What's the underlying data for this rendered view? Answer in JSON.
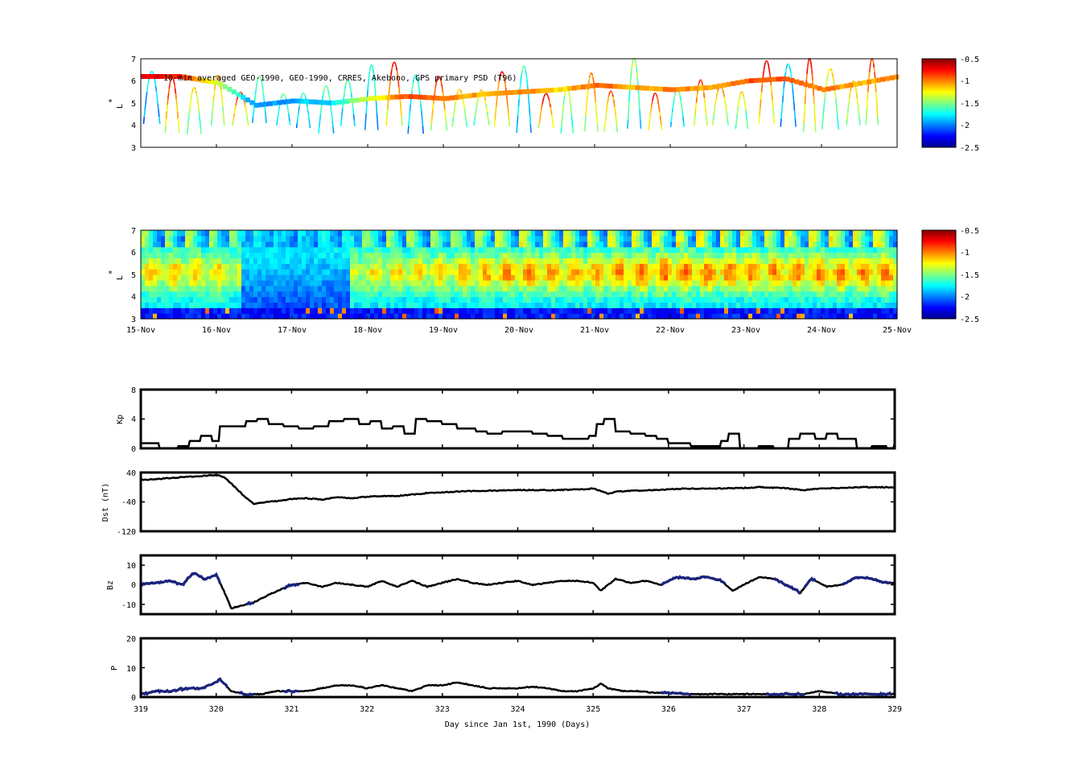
{
  "panels": {
    "psd_obs": {
      "annotation": "10-min averaged GEO-1990, GEO-1990, CRRES, Akebono, GPS  primary PSD (T96)",
      "ylabel_star": "*",
      "ylabel": "L",
      "yticks": [
        "3",
        "4",
        "5",
        "6",
        "7"
      ],
      "colorbar_ticks": [
        "-0.5",
        "-1",
        "-1.5",
        "-2",
        "-2.5"
      ]
    },
    "psd_model": {
      "ylabel_star": "*",
      "ylabel": "L",
      "yticks": [
        "3",
        "4",
        "5",
        "6",
        "7"
      ],
      "xticks": [
        "15-Nov",
        "16-Nov",
        "17-Nov",
        "18-Nov",
        "19-Nov",
        "20-Nov",
        "21-Nov",
        "22-Nov",
        "23-Nov",
        "24-Nov",
        "25-Nov"
      ],
      "colorbar_ticks": [
        "-0.5",
        "-1",
        "-1.5",
        "-2",
        "-2.5"
      ]
    },
    "kp": {
      "ylabel": "Kp",
      "yticks": [
        "0",
        "4",
        "8"
      ]
    },
    "dst": {
      "ylabel": "Dst (nT)",
      "yticks": [
        "-120",
        "-40",
        "40"
      ]
    },
    "bz": {
      "ylabel": "Bz",
      "yticks": [
        "-10",
        "0",
        "10"
      ]
    },
    "p": {
      "ylabel": "P",
      "yticks": [
        "0",
        "10",
        "20"
      ],
      "xticks": [
        "319",
        "320",
        "321",
        "322",
        "323",
        "324",
        "325",
        "326",
        "327",
        "328",
        "329"
      ],
      "xlabel": "Day since Jan 1st, 1990 (Days)"
    }
  },
  "colors": {
    "colormap": [
      "#00008f",
      "#0000ff",
      "#0080ff",
      "#00ffff",
      "#80ff80",
      "#ffff00",
      "#ff8000",
      "#ff0000",
      "#800000"
    ],
    "highlight_trace": "#1a237e"
  },
  "chart_data": [
    {
      "type": "heatmap",
      "name": "observed PSD",
      "title": "10-min averaged GEO-1990, GEO-1990, CRRES, Akebono, GPS  primary PSD (T96)",
      "ylabel": "L*",
      "ylim": [
        3,
        7
      ],
      "clim": [
        -2.5,
        -0.5
      ],
      "x_range": [
        "15-Nov",
        "25-Nov"
      ],
      "geo_track": {
        "day": [
          0,
          0.5,
          1,
          1.5,
          2,
          2.5,
          3,
          3.5,
          4,
          4.5,
          5,
          5.5,
          6,
          6.5,
          7,
          7.5,
          8,
          8.5,
          9,
          9.5,
          10
        ],
        "L": [
          6.2,
          6.2,
          5.9,
          4.9,
          5.1,
          5.0,
          5.2,
          5.3,
          5.2,
          5.4,
          5.5,
          5.6,
          5.8,
          5.7,
          5.6,
          5.7,
          6.0,
          6.1,
          5.6,
          5.9,
          6.2
        ],
        "logPSD": [
          -0.7,
          -0.8,
          -1.4,
          -2.0,
          -1.9,
          -1.8,
          -1.3,
          -0.9,
          -1.0,
          -1.1,
          -1.0,
          -1.2,
          -0.9,
          -1.1,
          -1.0,
          -1.1,
          -0.9,
          -0.9,
          -1.0,
          -1.1,
          -1.0
        ]
      }
    },
    {
      "type": "heatmap",
      "name": "assimilated PSD",
      "ylabel": "L*",
      "ylim": [
        3,
        7
      ],
      "clim": [
        -2.5,
        -0.5
      ],
      "x_categories": [
        "15-Nov",
        "16-Nov",
        "17-Nov",
        "18-Nov",
        "19-Nov",
        "20-Nov",
        "21-Nov",
        "22-Nov",
        "23-Nov",
        "24-Nov",
        "25-Nov"
      ],
      "activity_by_day": [
        0.65,
        0.6,
        0.15,
        0.55,
        0.6,
        0.75,
        0.7,
        0.8,
        0.75,
        0.75,
        0.8
      ]
    },
    {
      "type": "line",
      "ylabel": "Kp",
      "ylim": [
        0,
        8
      ],
      "x": [
        319,
        319.1,
        319.25,
        319.4,
        319.5,
        319.65,
        319.8,
        319.95,
        320.05,
        320.2,
        320.4,
        320.55,
        320.7,
        320.9,
        321.1,
        321.3,
        321.5,
        321.7,
        321.9,
        322.05,
        322.2,
        322.35,
        322.5,
        322.65,
        322.8,
        323.0,
        323.2,
        323.45,
        323.6,
        323.8,
        324.0,
        324.2,
        324.4,
        324.6,
        324.8,
        324.95,
        325.05,
        325.15,
        325.3,
        325.5,
        325.7,
        325.85,
        326.0,
        326.3,
        326.5,
        326.7,
        326.8,
        326.95,
        327.2,
        327.4,
        327.6,
        327.75,
        327.95,
        328.1,
        328.25,
        328.5,
        328.7,
        328.9,
        329.0
      ],
      "y": [
        0.7,
        0.7,
        0,
        0,
        0.3,
        1,
        1.7,
        1,
        3,
        3,
        3.7,
        4,
        3.3,
        3,
        2.7,
        3,
        3.7,
        4,
        3.3,
        3.7,
        2.7,
        3,
        2,
        4,
        3.7,
        3.3,
        2.7,
        2.3,
        2,
        2.3,
        2.3,
        2,
        1.7,
        1.3,
        1.3,
        1.7,
        3.3,
        4,
        2.3,
        2,
        1.7,
        1.3,
        0.7,
        0.3,
        0.3,
        1,
        2,
        0,
        0.3,
        0,
        1.3,
        2,
        1.3,
        2,
        1.3,
        0,
        0.3,
        0,
        0.7
      ]
    },
    {
      "type": "line",
      "ylabel": "Dst (nT)",
      "ylim": [
        -120,
        40
      ],
      "x": [
        319,
        319.2,
        319.4,
        319.6,
        319.8,
        320.0,
        320.1,
        320.2,
        320.3,
        320.4,
        320.5,
        320.6,
        320.8,
        321.0,
        321.2,
        321.4,
        321.6,
        321.8,
        322.0,
        322.2,
        322.4,
        322.6,
        322.8,
        323.0,
        323.2,
        323.5,
        323.8,
        324.0,
        324.2,
        324.5,
        324.8,
        325.0,
        325.1,
        325.2,
        325.3,
        325.5,
        325.8,
        326.0,
        326.2,
        326.5,
        326.8,
        327.0,
        327.2,
        327.5,
        327.8,
        328.0,
        328.3,
        328.6,
        328.9,
        329.0
      ],
      "y": [
        20,
        22,
        25,
        28,
        30,
        34,
        28,
        10,
        -10,
        -30,
        -45,
        -42,
        -38,
        -32,
        -30,
        -34,
        -28,
        -30,
        -26,
        -24,
        -24,
        -20,
        -16,
        -14,
        -12,
        -10,
        -9,
        -8,
        -8,
        -8,
        -6,
        -4,
        -10,
        -18,
        -12,
        -10,
        -8,
        -6,
        -4,
        -4,
        -3,
        -2,
        0,
        -2,
        -8,
        -4,
        -2,
        0,
        0,
        0
      ]
    },
    {
      "type": "line",
      "ylabel": "Bz",
      "ylim": [
        -15,
        15
      ],
      "x": [
        319,
        319.2,
        319.4,
        319.55,
        319.7,
        319.85,
        320.0,
        320.1,
        320.2,
        320.3,
        320.5,
        320.7,
        321.0,
        321.2,
        321.4,
        321.6,
        321.8,
        322.0,
        322.2,
        322.4,
        322.6,
        322.8,
        323.0,
        323.2,
        323.4,
        323.6,
        323.8,
        324.0,
        324.2,
        324.4,
        324.6,
        324.8,
        325.0,
        325.1,
        325.2,
        325.3,
        325.5,
        325.7,
        325.9,
        326.1,
        326.3,
        326.5,
        326.7,
        326.85,
        327.0,
        327.2,
        327.4,
        327.6,
        327.75,
        327.9,
        328.1,
        328.3,
        328.5,
        328.7,
        328.9,
        329.0
      ],
      "y": [
        0,
        1,
        2,
        0,
        6,
        3,
        5,
        -3,
        -12,
        -11,
        -9,
        -5,
        0,
        1,
        -1,
        1,
        0,
        -1,
        2,
        -1,
        2,
        -1,
        1,
        3,
        1,
        0,
        1,
        2,
        0,
        1,
        2,
        2,
        1,
        -3,
        0,
        3,
        1,
        2,
        0,
        4,
        3,
        4,
        2,
        -3,
        0,
        4,
        3,
        -1,
        -4,
        3,
        -1,
        0,
        4,
        3,
        1,
        1
      ],
      "highlight_ranges": [
        [
          319.0,
          320.05
        ],
        [
          320.4,
          320.5
        ],
        [
          320.9,
          321.1
        ],
        [
          325.9,
          326.75
        ],
        [
          327.4,
          327.75
        ],
        [
          327.8,
          327.95
        ],
        [
          328.3,
          328.95
        ]
      ]
    },
    {
      "type": "line",
      "ylabel": "P",
      "xlabel": "Day since Jan 1st, 1990 (Days)",
      "xlim": [
        319,
        329
      ],
      "ylim": [
        0,
        20
      ],
      "x": [
        319,
        319.2,
        319.4,
        319.6,
        319.8,
        320.0,
        320.05,
        320.2,
        320.4,
        320.6,
        320.8,
        321.0,
        321.2,
        321.4,
        321.6,
        321.8,
        322.0,
        322.2,
        322.4,
        322.6,
        322.8,
        323.0,
        323.2,
        323.4,
        323.6,
        323.8,
        324.0,
        324.2,
        324.4,
        324.6,
        324.8,
        325.0,
        325.1,
        325.2,
        325.4,
        325.6,
        325.8,
        326.0,
        326.3,
        326.6,
        326.9,
        327.2,
        327.5,
        327.8,
        328.0,
        328.3,
        328.6,
        328.9,
        329.0
      ],
      "y": [
        1,
        2,
        2,
        3,
        3,
        5,
        6,
        2,
        1,
        1,
        2,
        2,
        2,
        3,
        4,
        4,
        3,
        4,
        3,
        2,
        4,
        4,
        5,
        4,
        3,
        3,
        3,
        3.5,
        3,
        2,
        2,
        3,
        4.5,
        3,
        2,
        2,
        1.5,
        1.5,
        1,
        1,
        1,
        1,
        1,
        1,
        2,
        1,
        1,
        1,
        1
      ],
      "highlight_ranges": [
        [
          319.0,
          320.15
        ],
        [
          320.3,
          320.5
        ],
        [
          320.9,
          321.1
        ],
        [
          325.9,
          326.3
        ],
        [
          327.3,
          327.8
        ],
        [
          328.2,
          328.95
        ]
      ]
    }
  ]
}
